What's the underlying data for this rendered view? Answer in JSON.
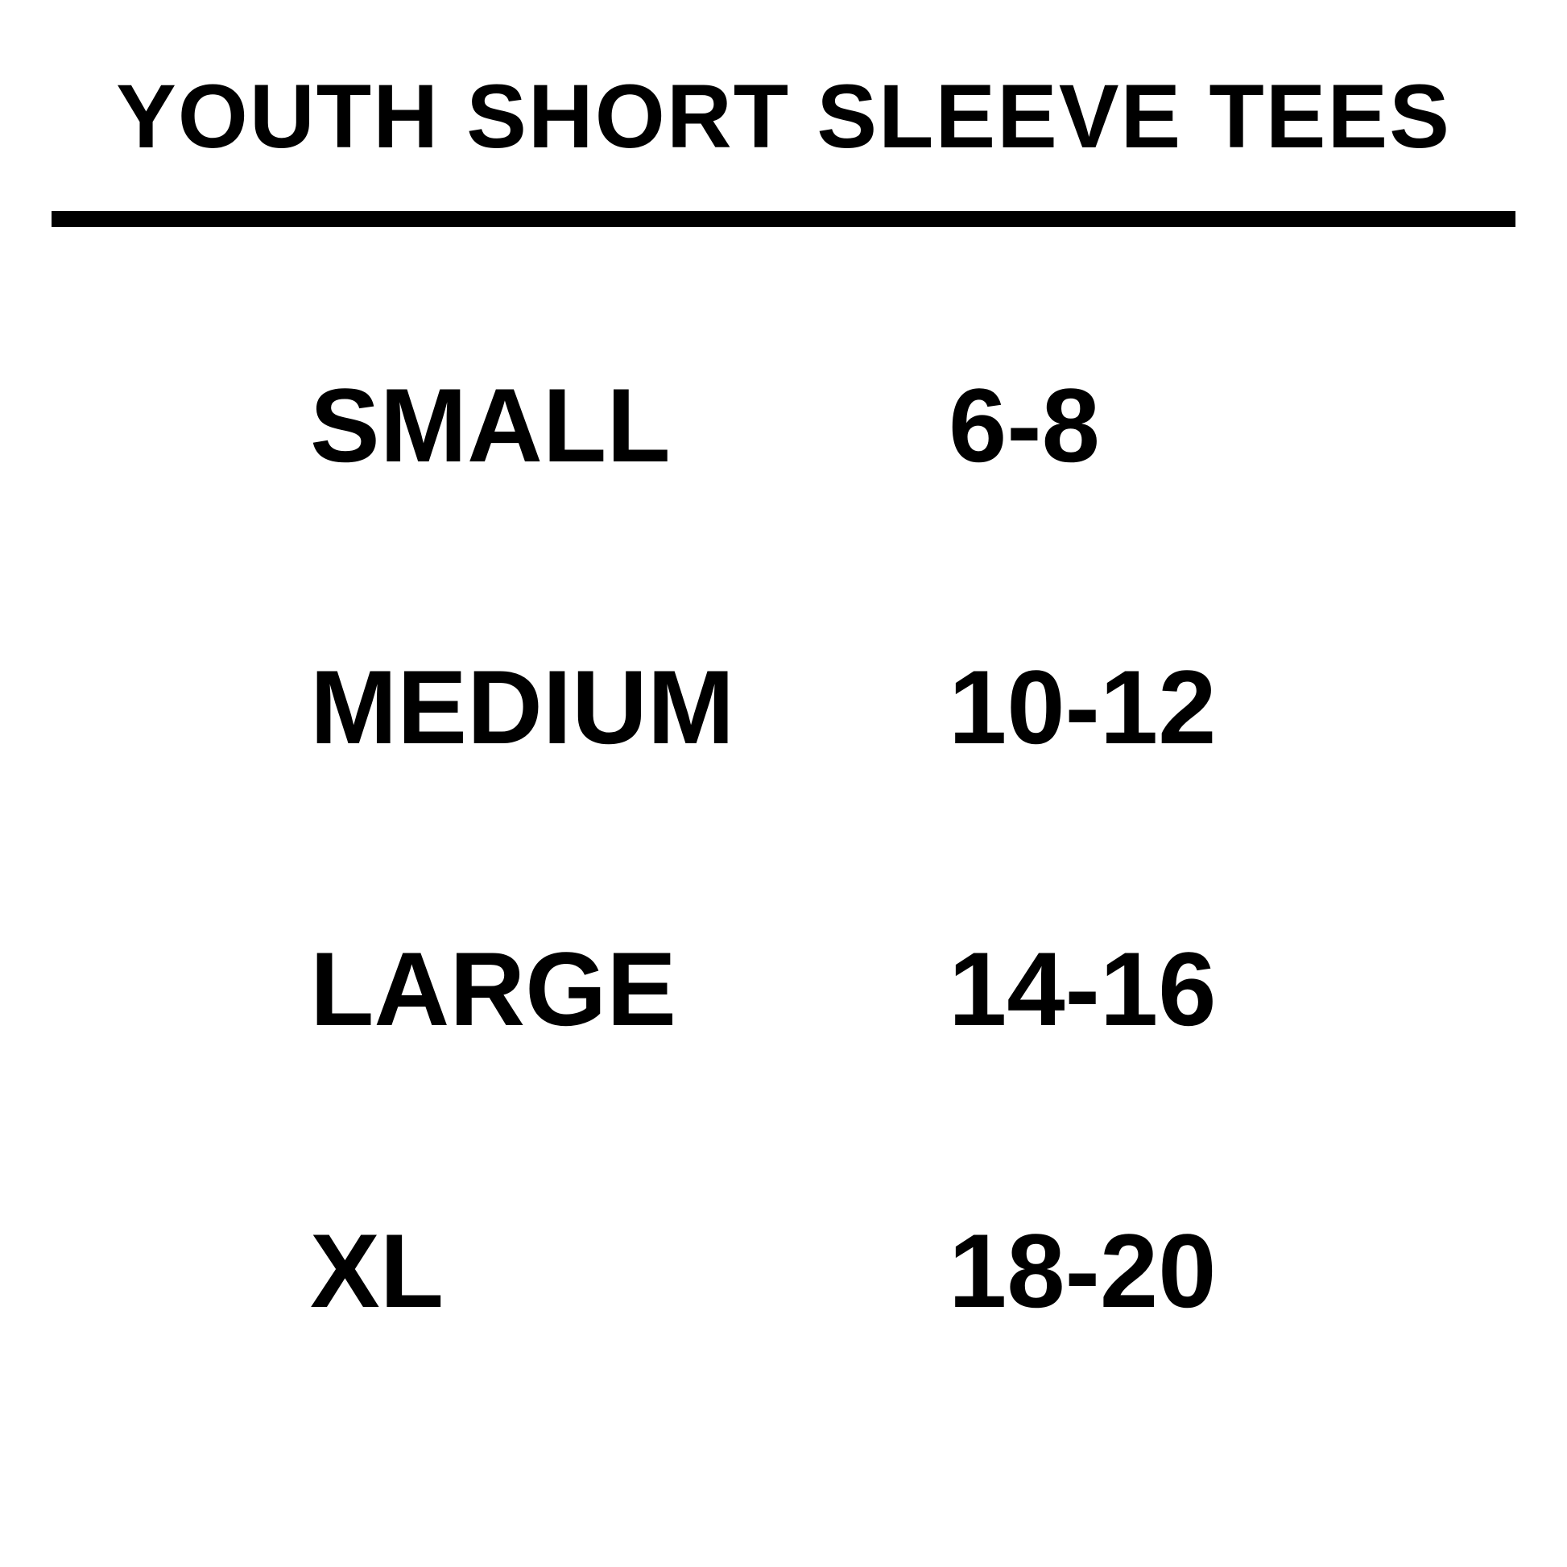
{
  "title": "YOUTH SHORT SLEEVE TEES",
  "sizes": [
    {
      "label": "SMALL",
      "range": "6-8"
    },
    {
      "label": "MEDIUM",
      "range": "10-12"
    },
    {
      "label": "LARGE",
      "range": "14-16"
    },
    {
      "label": "XL",
      "range": "18-20"
    }
  ]
}
